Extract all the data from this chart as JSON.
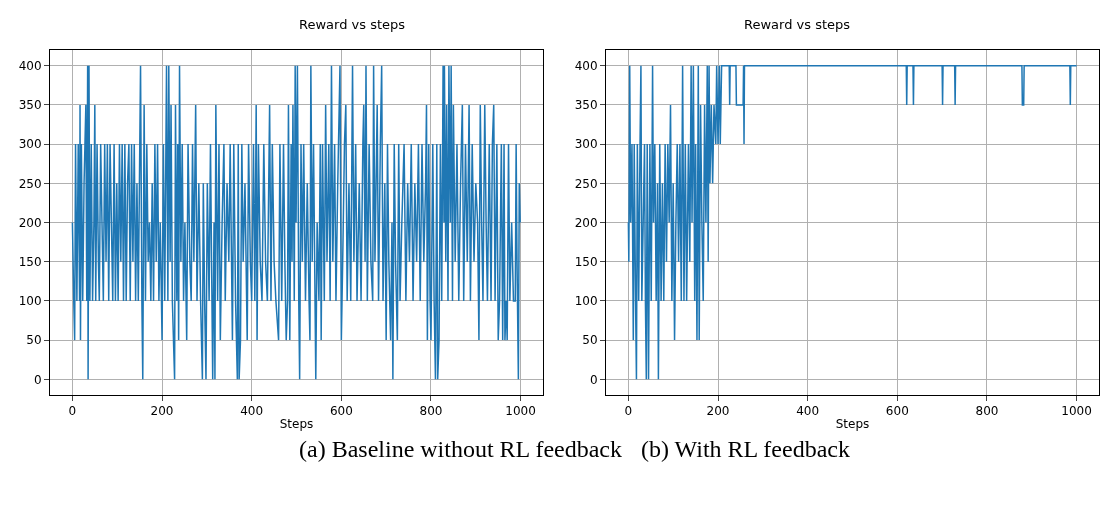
{
  "chart_data": [
    {
      "type": "line",
      "title": "Reward vs steps",
      "xlabel": "Steps",
      "annotations": [
        "(a) Baseline without RL feedback"
      ],
      "grid": true,
      "xlim": [
        -50,
        1050
      ],
      "ylim": [
        -20,
        420
      ],
      "xticks": [
        0,
        200,
        400,
        600,
        800,
        1000
      ],
      "yticks": [
        0,
        50,
        100,
        150,
        200,
        250,
        300,
        350,
        400
      ],
      "series": [
        {
          "color": "#1f77b4",
          "x": [
            0,
            3,
            5,
            7,
            10,
            13,
            16,
            17,
            18,
            20,
            23,
            26,
            28,
            30,
            32,
            34,
            35,
            37,
            39,
            42,
            45,
            48,
            50,
            52,
            55,
            58,
            60,
            63,
            66,
            69,
            72,
            75,
            78,
            81,
            84,
            87,
            90,
            93,
            96,
            99,
            102,
            105,
            108,
            111,
            114,
            117,
            120,
            123,
            126,
            129,
            132,
            135,
            138,
            141,
            144,
            147,
            152,
            155,
            157,
            160,
            163,
            166,
            169,
            172,
            175,
            178,
            181,
            184,
            187,
            190,
            193,
            196,
            200,
            203,
            206,
            210,
            213,
            215,
            218,
            220,
            223,
            228,
            230,
            233,
            235,
            237,
            239,
            242,
            245,
            248,
            251,
            255,
            258,
            262,
            265,
            268,
            271,
            275,
            278,
            282,
            286,
            290,
            292,
            295,
            298,
            301,
            305,
            308,
            313,
            316,
            318,
            320,
            324,
            327,
            330,
            334,
            338,
            341,
            345,
            349,
            352,
            357,
            360,
            364,
            368,
            370,
            372,
            375,
            378,
            381,
            385,
            390,
            393,
            397,
            400,
            404,
            407,
            410,
            412,
            415,
            419,
            423,
            427,
            431,
            435,
            440,
            443,
            446,
            450,
            454,
            460,
            463,
            467,
            471,
            474,
            477,
            480,
            482,
            485,
            488,
            490,
            492,
            495,
            497,
            499,
            502,
            505,
            507,
            510,
            513,
            516,
            520,
            524,
            528,
            530,
            532,
            535,
            538,
            543,
            546,
            550,
            553,
            555,
            558,
            562,
            565,
            568,
            572,
            575,
            578,
            581,
            585,
            588,
            592,
            597,
            600,
            603,
            607,
            610,
            613,
            617,
            621,
            625,
            628,
            632,
            635,
            640,
            644,
            648,
            650,
            653,
            655,
            658,
            662,
            666,
            670,
            672,
            675,
            680,
            683,
            687,
            690,
            693,
            697,
            700,
            703,
            706,
            710,
            713,
            715,
            718,
            721,
            725,
            728,
            731,
            735,
            740,
            744,
            748,
            752,
            756,
            760,
            764,
            768,
            772,
            776,
            780,
            784,
            788,
            790,
            792,
            795,
            798,
            800,
            804,
            807,
            810,
            813,
            815,
            818,
            821,
            824,
            827,
            829,
            830,
            833,
            835,
            838,
            840,
            843,
            845,
            848,
            850,
            854,
            858,
            862,
            866,
            870,
            873,
            877,
            881,
            885,
            888,
            892,
            896,
            900,
            904,
            907,
            910,
            913,
            916,
            920,
            923,
            926,
            930,
            934,
            937,
            940,
            943,
            947,
            950,
            953,
            957,
            960,
            963,
            965,
            968,
            970,
            973,
            976,
            980,
            984,
            988,
            990,
            992,
            995,
            997,
            999
          ],
          "values": [
            200,
            100,
            50,
            300,
            100,
            300,
            100,
            350,
            50,
            300,
            100,
            250,
            300,
            350,
            100,
            400,
            0,
            400,
            100,
            300,
            100,
            200,
            350,
            100,
            300,
            150,
            100,
            300,
            200,
            100,
            300,
            150,
            300,
            100,
            300,
            200,
            100,
            300,
            100,
            250,
            100,
            300,
            150,
            300,
            100,
            300,
            100,
            250,
            300,
            100,
            300,
            150,
            300,
            100,
            250,
            100,
            400,
            100,
            0,
            350,
            100,
            300,
            150,
            200,
            100,
            250,
            100,
            300,
            150,
            300,
            100,
            200,
            50,
            300,
            100,
            400,
            100,
            400,
            150,
            350,
            100,
            0,
            350,
            100,
            300,
            50,
            400,
            150,
            300,
            100,
            200,
            50,
            300,
            150,
            100,
            300,
            150,
            350,
            100,
            250,
            100,
            0,
            250,
            100,
            0,
            250,
            100,
            300,
            0,
            200,
            0,
            350,
            100,
            300,
            50,
            200,
            300,
            100,
            250,
            150,
            300,
            50,
            300,
            100,
            0,
            300,
            0,
            50,
            300,
            150,
            250,
            50,
            300,
            150,
            100,
            300,
            100,
            350,
            50,
            300,
            150,
            100,
            300,
            150,
            100,
            350,
            100,
            300,
            150,
            100,
            50,
            300,
            100,
            300,
            150,
            50,
            100,
            350,
            50,
            300,
            150,
            350,
            100,
            400,
            200,
            400,
            100,
            0,
            300,
            150,
            300,
            100,
            250,
            100,
            50,
            400,
            150,
            300,
            0,
            200,
            100,
            300,
            50,
            300,
            100,
            350,
            150,
            300,
            100,
            400,
            150,
            300,
            100,
            250,
            400,
            50,
            150,
            300,
            350,
            100,
            250,
            100,
            400,
            150,
            300,
            100,
            250,
            100,
            300,
            350,
            150,
            400,
            100,
            300,
            150,
            100,
            400,
            150,
            350,
            100,
            300,
            400,
            100,
            250,
            50,
            300,
            150,
            50,
            200,
            0,
            300,
            150,
            50,
            300,
            100,
            200,
            300,
            100,
            250,
            150,
            300,
            100,
            250,
            150,
            300,
            100,
            300,
            150,
            250,
            350,
            50,
            300,
            100,
            50,
            300,
            100,
            0,
            300,
            0,
            50,
            300,
            100,
            400,
            200,
            400,
            150,
            350,
            100,
            400,
            200,
            400,
            100,
            350,
            150,
            300,
            100,
            250,
            350,
            100,
            300,
            150,
            350,
            100,
            300,
            150,
            250,
            200,
            50,
            350,
            200,
            100,
            350,
            200,
            100,
            300,
            100,
            300,
            350,
            100,
            300,
            50,
            100,
            300,
            50,
            300,
            50,
            100,
            50,
            300,
            100,
            200,
            100,
            100,
            300,
            150,
            0,
            250,
            200
          ]
        }
      ]
    },
    {
      "type": "line",
      "title": "Reward vs steps",
      "xlabel": "Steps",
      "annotations": [
        "(b) With RL feedback"
      ],
      "grid": true,
      "xlim": [
        -50,
        1050
      ],
      "ylim": [
        -20,
        420
      ],
      "xticks": [
        0,
        200,
        400,
        600,
        800,
        1000
      ],
      "yticks": [
        0,
        50,
        100,
        150,
        200,
        250,
        300,
        350,
        400
      ],
      "series": [
        {
          "color": "#1f77b4",
          "x": [
            0,
            1,
            3,
            5,
            8,
            11,
            13,
            16,
            18,
            20,
            23,
            26,
            28,
            30,
            33,
            36,
            38,
            40,
            42,
            45,
            48,
            51,
            54,
            56,
            59,
            62,
            65,
            67,
            70,
            73,
            76,
            79,
            82,
            85,
            88,
            91,
            94,
            97,
            100,
            103,
            106,
            109,
            112,
            115,
            118,
            121,
            124,
            127,
            130,
            134,
            137,
            140,
            142,
            145,
            148,
            150,
            153,
            156,
            158,
            161,
            164,
            167,
            170,
            173,
            176,
            178,
            180,
            182,
            185,
            188,
            191,
            195,
            197,
            200,
            203,
            205,
            208,
            225,
            226,
            227,
            240,
            241,
            256,
            257,
            258,
            259,
            620,
            621,
            622,
            635,
            636,
            637,
            700,
            701,
            702,
            728,
            729,
            730,
            878,
            879,
            882,
            883,
            985,
            986,
            987,
            1000
          ],
          "values": [
            200,
            150,
            400,
            200,
            300,
            50,
            300,
            100,
            0,
            300,
            100,
            300,
            400,
            100,
            200,
            300,
            100,
            0,
            300,
            0,
            300,
            100,
            400,
            200,
            300,
            100,
            250,
            0,
            300,
            100,
            250,
            100,
            300,
            150,
            300,
            200,
            350,
            100,
            250,
            50,
            200,
            300,
            150,
            300,
            100,
            400,
            100,
            300,
            100,
            300,
            150,
            400,
            200,
            400,
            100,
            300,
            50,
            400,
            50,
            350,
            200,
            100,
            350,
            200,
            400,
            150,
            400,
            250,
            350,
            250,
            350,
            300,
            400,
            300,
            400,
            300,
            400,
            400,
            350,
            400,
            400,
            350,
            350,
            400,
            300,
            400,
            400,
            350,
            400,
            400,
            350,
            400,
            400,
            350,
            400,
            400,
            350,
            400,
            400,
            350,
            350,
            400,
            400,
            350,
            400,
            400
          ]
        }
      ]
    }
  ]
}
